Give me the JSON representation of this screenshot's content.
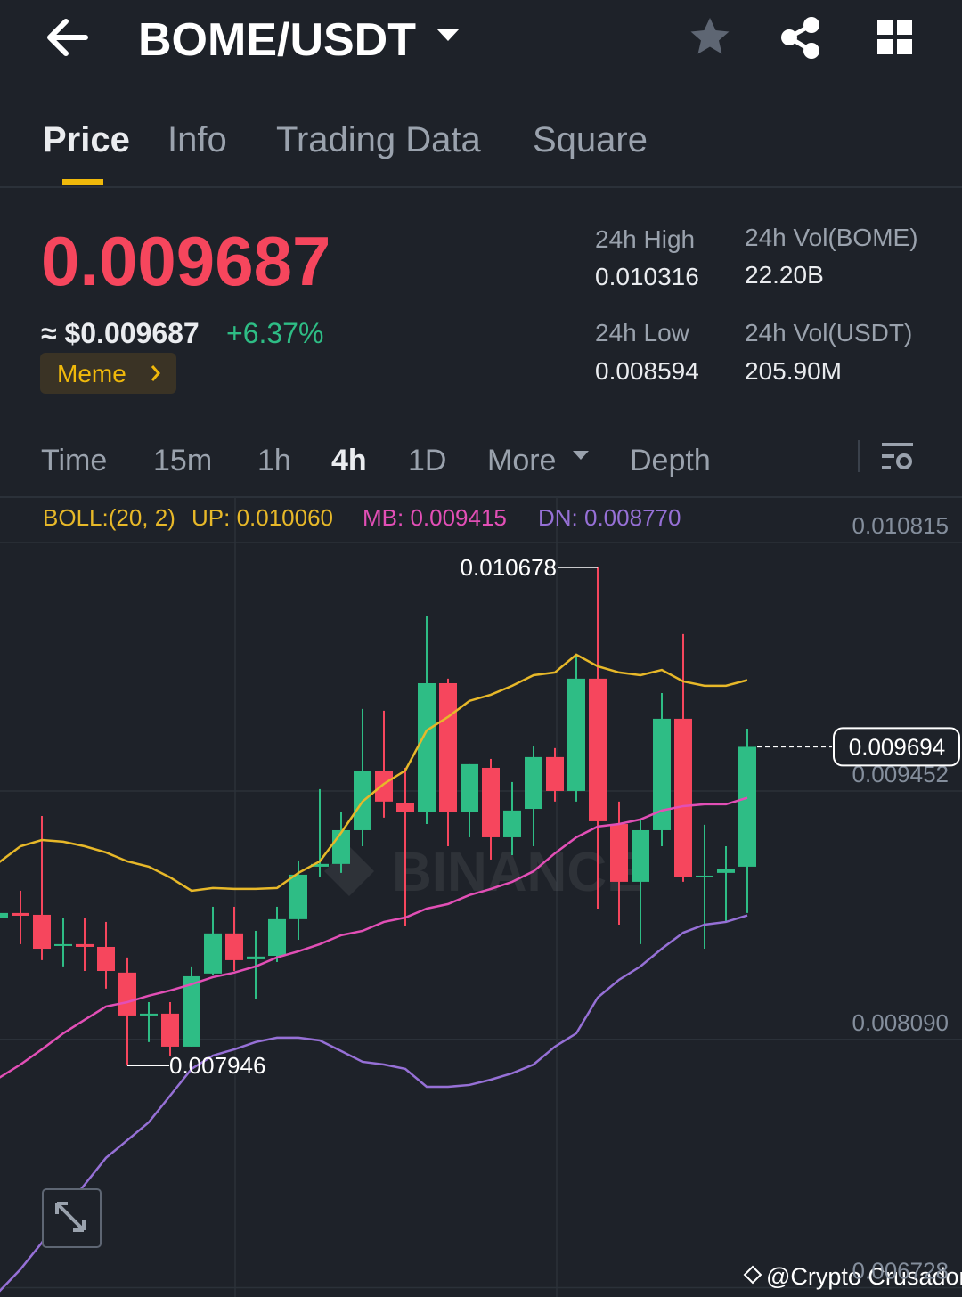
{
  "header": {
    "pair": "BOME/USDT"
  },
  "tabs": [
    "Price",
    "Info",
    "Trading Data",
    "Square"
  ],
  "price": {
    "last": "0.009687",
    "usd": "≈ $0.009687",
    "change": "+6.37%",
    "tag": "Meme"
  },
  "stats": [
    {
      "label": "24h High",
      "value": "0.010316"
    },
    {
      "label": "24h Vol(BOME)",
      "value": "22.20B"
    },
    {
      "label": "24h Low",
      "value": "0.008594"
    },
    {
      "label": "24h Vol(USDT)",
      "value": "205.90M"
    }
  ],
  "intervals": [
    "Time",
    "15m",
    "1h",
    "4h",
    "1D",
    "More",
    "Depth"
  ],
  "chart_data": {
    "type": "candlestick",
    "indicator": "BOLL:(20, 2)",
    "ylim": [
      0.006677,
      0.011064
    ],
    "yticks": [
      0.010815,
      0.009452,
      {
        "value": 0.00809,
        "label": "0.008090"
      },
      0.006728
    ],
    "grid": true,
    "up_color": "#2ebd85",
    "down_color": "#f6465d",
    "candles": {
      "open": [
        0.008758,
        0.008783,
        0.008773,
        0.008602,
        0.008612,
        0.008597,
        0.008456,
        0.008221,
        0.008231,
        0.00805,
        0.008451,
        0.008671,
        0.008529,
        0.008548,
        0.008749,
        0.009037,
        0.009052,
        0.009237,
        0.009564,
        0.009384,
        0.009335,
        0.010043,
        0.009335,
        0.009579,
        0.009198,
        0.009354,
        0.009638,
        0.009452,
        0.010068,
        0.009271,
        0.008954,
        0.009237,
        0.009848,
        0.008978,
        0.009003,
        0.009037
      ],
      "high": [
        0.008856,
        0.008905,
        0.009315,
        0.008758,
        0.008758,
        0.008734,
        0.008539,
        0.008294,
        0.008294,
        0.00849,
        0.008817,
        0.008817,
        0.008685,
        0.008817,
        0.009071,
        0.009462,
        0.009335,
        0.009902,
        0.009892,
        0.009579,
        0.01041,
        0.010068,
        0.009599,
        0.009628,
        0.009501,
        0.009696,
        0.009687,
        0.0102,
        0.010678,
        0.009394,
        0.009296,
        0.009989,
        0.010312,
        0.009267,
        0.009149,
        0.009794
      ],
      "low": [
        0.008612,
        0.008612,
        0.008524,
        0.00849,
        0.008465,
        0.008368,
        0.007946,
        0.008075,
        0.008001,
        0.00805,
        0.008441,
        0.008465,
        0.008309,
        0.008514,
        0.008636,
        0.008978,
        0.009003,
        0.009149,
        0.009306,
        0.00871,
        0.009271,
        0.009149,
        0.009198,
        0.009076,
        0.0091,
        0.009149,
        0.009394,
        0.009394,
        0.008807,
        0.008719,
        0.008612,
        0.009149,
        0.008954,
        0.008587,
        0.008734,
        0.008783
      ],
      "close": [
        0.008783,
        0.008768,
        0.008587,
        0.008612,
        0.008597,
        0.008465,
        0.008221,
        0.008231,
        0.00805,
        0.008436,
        0.008671,
        0.008524,
        0.008544,
        0.008749,
        0.008993,
        0.009052,
        0.009237,
        0.009564,
        0.009394,
        0.009335,
        0.010043,
        0.009335,
        0.009599,
        0.009198,
        0.009345,
        0.009638,
        0.009452,
        0.010068,
        0.009286,
        0.008954,
        0.009237,
        0.009848,
        0.008978,
        0.008988,
        0.009022,
        0.009694
      ]
    },
    "lines": [
      {
        "name": "UP: 0.010060",
        "color": "#e7b829",
        "values": [
          0.009061,
          0.009149,
          0.009183,
          0.009174,
          0.009149,
          0.009115,
          0.009066,
          0.009037,
          0.008978,
          0.008905,
          0.00892,
          0.008915,
          0.008915,
          0.00892,
          0.009003,
          0.009066,
          0.009223,
          0.009394,
          0.009491,
          0.009564,
          0.009784,
          0.009858,
          0.009946,
          0.00998,
          0.010029,
          0.010087,
          0.010102,
          0.0102,
          0.010136,
          0.010102,
          0.010087,
          0.010116,
          0.010053,
          0.010029,
          0.010029,
          0.01006
        ]
      },
      {
        "name": "MB: 0.009415",
        "color": "#e24fb6",
        "values": [
          0.007879,
          0.007952,
          0.008035,
          0.008123,
          0.008197,
          0.00827,
          0.008294,
          0.008329,
          0.008358,
          0.008392,
          0.008431,
          0.008456,
          0.00849,
          0.008539,
          0.008573,
          0.008612,
          0.008661,
          0.008685,
          0.008734,
          0.008758,
          0.008807,
          0.008832,
          0.008881,
          0.008915,
          0.008954,
          0.009012,
          0.00911,
          0.009198,
          0.009257,
          0.009271,
          0.009296,
          0.009345,
          0.009369,
          0.009379,
          0.009379,
          0.009415
        ]
      },
      {
        "name": "DN: 0.008770",
        "color": "#9670d6",
        "values": [
          0.006707,
          0.006829,
          0.006975,
          0.007146,
          0.007293,
          0.00744,
          0.007537,
          0.007635,
          0.007781,
          0.007928,
          0.008001,
          0.008035,
          0.008075,
          0.008099,
          0.008099,
          0.008084,
          0.008026,
          0.007967,
          0.007952,
          0.007928,
          0.00783,
          0.00783,
          0.00784,
          0.007869,
          0.007904,
          0.007952,
          0.00805,
          0.008123,
          0.008319,
          0.008417,
          0.00849,
          0.008587,
          0.008675,
          0.008719,
          0.008734,
          0.00877
        ]
      }
    ],
    "high_marker": 0.010678,
    "low_marker": 0.007946,
    "last_price": 0.009694
  },
  "watermark": "BINANCE",
  "credit": "@Crypto Crusador"
}
